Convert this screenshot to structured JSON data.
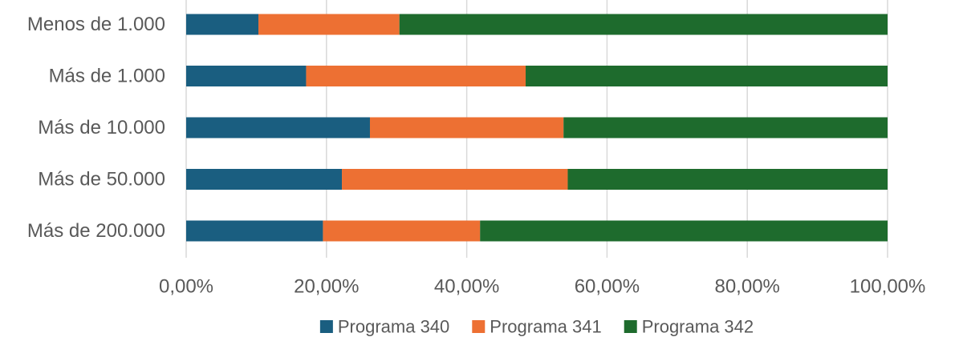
{
  "chart_data": {
    "type": "bar",
    "orientation": "horizontal",
    "stacked": "percent",
    "categories": [
      "Menos de 1.000",
      "Más de 1.000",
      "Más de 10.000",
      "Más de 50.000",
      "Más de 200.000"
    ],
    "series": [
      {
        "name": "Programa 340",
        "color": "#1a5e80",
        "values": [
          10.3,
          17.1,
          26.2,
          22.2,
          19.5
        ]
      },
      {
        "name": "Programa 341",
        "color": "#ed7033",
        "values": [
          20.1,
          31.3,
          27.6,
          32.2,
          22.4
        ]
      },
      {
        "name": "Programa 342",
        "color": "#1e6b2d",
        "values": [
          69.6,
          51.6,
          46.2,
          45.6,
          58.1
        ]
      }
    ],
    "xlim": [
      0,
      100
    ],
    "xticks": [
      0,
      20,
      40,
      60,
      80,
      100
    ],
    "xtick_labels": [
      "0,00%",
      "20,00%",
      "40,00%",
      "60,00%",
      "80,00%",
      "100,00%"
    ],
    "grid": true,
    "legend_position": "bottom"
  }
}
